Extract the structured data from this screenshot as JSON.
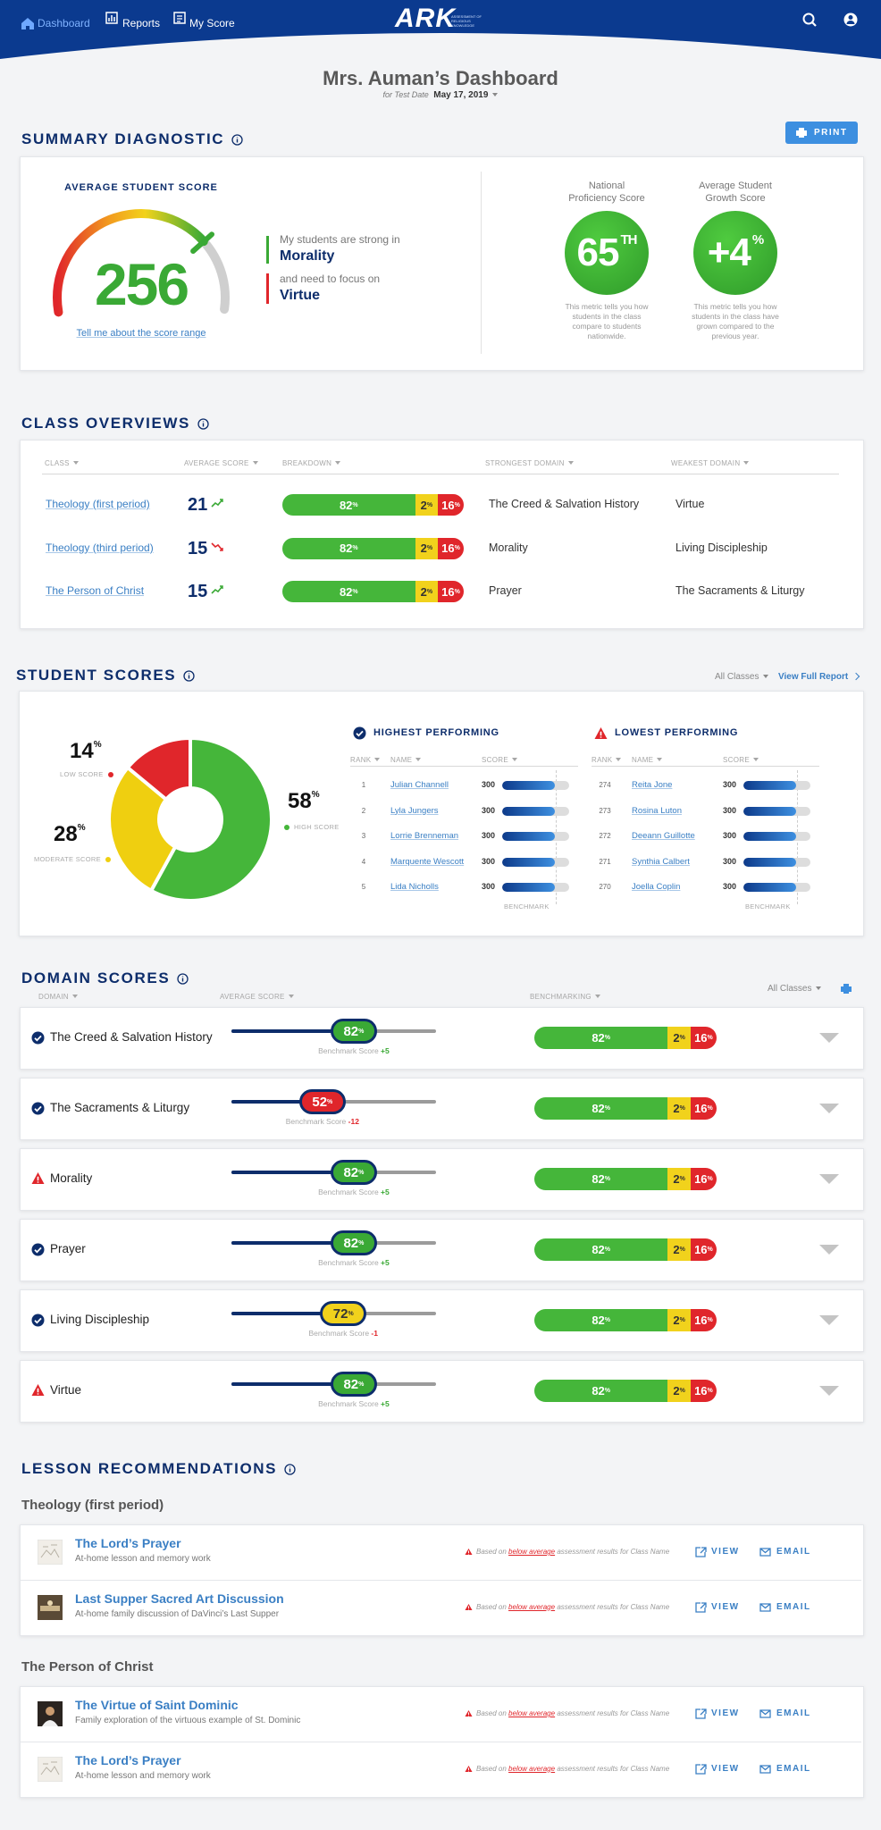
{
  "nav": {
    "links": [
      "Dashboard",
      "Reports",
      "My Score"
    ],
    "logo": "ARK",
    "logo_tagline": "ASSESSMENT OF RELIGIOUS KNOWLEDGE"
  },
  "header": {
    "title": "Mrs. Auman’s Dashboard",
    "date_prefix": "for Test Date",
    "date": "May 17, 2019"
  },
  "percent_sign": "%",
  "breakdown_colors": [
    "#45b63a",
    "#f1d21c",
    "#e0262b"
  ],
  "summary": {
    "title": "SUMMARY DIAGNOSTIC",
    "print": "PRINT",
    "score_label": "AVERAGE STUDENT SCORE",
    "score": 256,
    "strong_text": "My students are strong in",
    "strong_domain": "Morality",
    "focus_text": "and need to focus on",
    "focus_domain": "Virtue",
    "score_link": "Tell me about the score range",
    "metrics": [
      {
        "label": "National Proficiency Score",
        "value": 65,
        "suffix": "TH",
        "note": "This metric tells you how students in the class compare to students nationwide."
      },
      {
        "label": "Average Student Growth Score",
        "value": "+4",
        "suffix": "%",
        "note": "This metric tells you how students in the class have grown compared to the previous year."
      }
    ]
  },
  "class_overviews": {
    "title": "CLASS OVERVIEWS",
    "columns": [
      "CLASS",
      "AVERAGE SCORE",
      "BREAKDOWN",
      "STRONGEST DOMAIN",
      "WEAKEST DOMAIN"
    ],
    "rows": [
      {
        "class": "Theology (first period)",
        "average": 21,
        "trend": "up",
        "breakdown": [
          82,
          2,
          16
        ],
        "strongest": "The Creed & Salvation History",
        "weakest": "Virtue"
      },
      {
        "class": "Theology (third period)",
        "average": 15,
        "trend": "down",
        "breakdown": [
          82,
          2,
          16
        ],
        "strongest": "Morality",
        "weakest": "Living Discipleship"
      },
      {
        "class": "The Person of Christ",
        "average": 15,
        "trend": "up",
        "breakdown": [
          82,
          2,
          16
        ],
        "strongest": "Prayer",
        "weakest": "The Sacraments & Liturgy"
      }
    ]
  },
  "student_scores": {
    "title": "STUDENT SCORES",
    "filter": "All Classes",
    "full_report": "View Full Report",
    "distribution": [
      {
        "label": "HIGH SCORE",
        "value": 58,
        "color": "#45b63a"
      },
      {
        "label": "MODERATE SCORE",
        "value": 28,
        "color": "#efcf10"
      },
      {
        "label": "LOW SCORE",
        "value": 14,
        "color": "#e0262b"
      }
    ],
    "highest": {
      "title": "HIGHEST PERFORMING",
      "columns": [
        "RANK",
        "NAME",
        "SCORE"
      ],
      "benchmark": "BENCHMARK",
      "rows": [
        [
          1,
          "Julian Channell",
          300
        ],
        [
          2,
          "Lyla Jungers",
          300
        ],
        [
          3,
          "Lorrie Brenneman",
          300
        ],
        [
          4,
          "Marquente Wescott",
          300
        ],
        [
          5,
          "Lida Nicholls",
          300
        ]
      ]
    },
    "lowest": {
      "title": "LOWEST PERFORMING",
      "columns": [
        "RANK",
        "NAME",
        "SCORE"
      ],
      "benchmark": "BENCHMARK",
      "rows": [
        [
          274,
          "Reita Jone",
          300
        ],
        [
          273,
          "Rosina Luton",
          300
        ],
        [
          272,
          "Deeann Guillotte",
          300
        ],
        [
          271,
          "Synthia Calbert",
          300
        ],
        [
          270,
          "Joella Coplin",
          300
        ]
      ]
    }
  },
  "domain_scores": {
    "title": "DOMAIN SCORES",
    "filter": "All Classes",
    "columns": [
      "DOMAIN",
      "AVERAGE SCORE",
      "BENCHMARKING"
    ],
    "benchmark_label": "Benchmark Score",
    "rows": [
      {
        "domain": "The Creed & Salvation History",
        "status": "check",
        "score": 82,
        "color": "#3aa935",
        "benchmark": "+5",
        "breakdown": [
          82,
          2,
          16
        ]
      },
      {
        "domain": "The Sacraments & Liturgy",
        "status": "check",
        "score": 52,
        "color": "#e0262b",
        "benchmark": "-12",
        "breakdown": [
          82,
          2,
          16
        ]
      },
      {
        "domain": "Morality",
        "status": "warning",
        "score": 82,
        "color": "#3aa935",
        "benchmark": "+5",
        "breakdown": [
          82,
          2,
          16
        ]
      },
      {
        "domain": "Prayer",
        "status": "check",
        "score": 82,
        "color": "#3aa935",
        "benchmark": "+5",
        "breakdown": [
          82,
          2,
          16
        ]
      },
      {
        "domain": "Living Discipleship",
        "status": "check",
        "score": 72,
        "color": "#f1d21c",
        "benchmark": "-1",
        "breakdown": [
          82,
          2,
          16
        ]
      },
      {
        "domain": "Virtue",
        "status": "warning",
        "score": 82,
        "color": "#3aa935",
        "benchmark": "+5",
        "breakdown": [
          82,
          2,
          16
        ]
      }
    ]
  },
  "lessons": {
    "title": "LESSON RECOMMENDATIONS",
    "note_prefix": "Based on",
    "note_emphasis": "below average",
    "note_suffix": "assessment results for Class Name",
    "view": "VIEW",
    "email": "EMAIL",
    "groups": [
      {
        "name": "Theology (first period)",
        "items": [
          {
            "title": "The Lord’s Prayer",
            "description": "At-home lesson and memory work",
            "thumb": "sketch"
          },
          {
            "title": "Last Supper Sacred Art Discussion",
            "description": "At-home family discussion of DaVinci’s Last Supper",
            "thumb": "painting"
          }
        ]
      },
      {
        "name": "The Person of Christ",
        "items": [
          {
            "title": "The Virtue of Saint Dominic",
            "description": "Family exploration of the virtuous example of St. Dominic",
            "thumb": "portrait"
          },
          {
            "title": "The Lord’s Prayer",
            "description": "At-home lesson and memory work",
            "thumb": "sketch"
          }
        ]
      }
    ]
  }
}
